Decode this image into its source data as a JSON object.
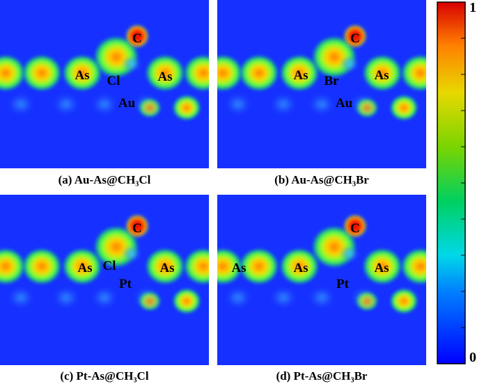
{
  "panels": [
    {
      "caption": "(a) Au-As@CH₃Cl",
      "atoms": [
        "C",
        "Cl",
        "As",
        "As",
        "Au"
      ]
    },
    {
      "caption": "(b) Au-As@CH₃Br",
      "atoms": [
        "C",
        "Br",
        "As",
        "As",
        "Au"
      ]
    },
    {
      "caption": "(c) Pt-As@CH₃Cl",
      "atoms": [
        "C",
        "Cl",
        "As",
        "As",
        "Pt"
      ]
    },
    {
      "caption": "(d) Pt-As@CH₃Br",
      "atoms": [
        "C",
        "As",
        "As",
        "As",
        "Pt"
      ]
    }
  ],
  "colorbar": {
    "max_label": "1",
    "min_label": "0"
  }
}
